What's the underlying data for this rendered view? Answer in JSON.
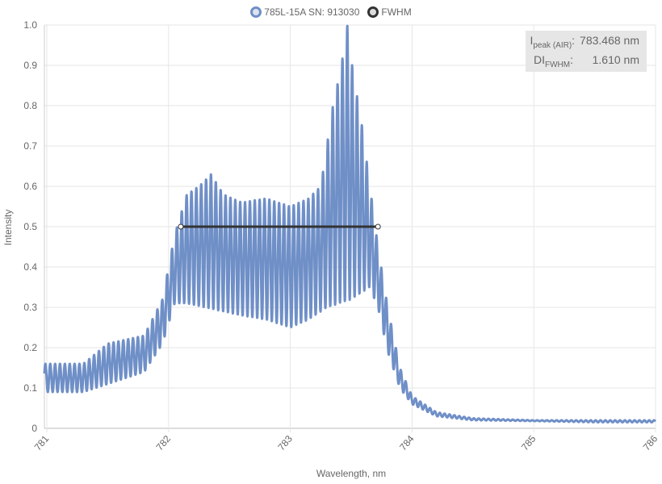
{
  "legend": {
    "series_label": "785L-15A SN: 913030",
    "fwhm_label": "FWHM"
  },
  "stats": {
    "peak_label_main": "I",
    "peak_label_sub": "peak (AIR)",
    "peak_value": "783.468 nm",
    "fwhm_label_main": "DI",
    "fwhm_label_sub": "FWHM",
    "fwhm_value": "1.610 nm"
  },
  "colors": {
    "series": "#6f8fc7",
    "fwhm": "#333333",
    "grid": "#e6e6e6",
    "axis_text": "#666666"
  },
  "chart_data": {
    "type": "line",
    "xlabel": "Wavelength, nm",
    "ylabel": "Intensity",
    "xlim": [
      780.98,
      786.0
    ],
    "ylim": [
      0,
      1.0
    ],
    "xticks": [
      "781",
      "782",
      "783",
      "784",
      "785",
      "786"
    ],
    "yticks": [
      "0",
      "0.1",
      "0.2",
      "0.3",
      "0.4",
      "0.5",
      "0.6",
      "0.7",
      "0.8",
      "0.9",
      "1.0"
    ],
    "grid": true,
    "legend_position": "top-center",
    "fwhm": {
      "x_start": 782.1,
      "x_end": 783.72,
      "y": 0.5
    },
    "peak_x": 783.468,
    "peak_y": 1.0,
    "series": [
      {
        "name": "785L-15A SN: 913030",
        "modulation_period_nm": 0.04,
        "upper_envelope": [
          [
            780.98,
            0.16
          ],
          [
            781.3,
            0.16
          ],
          [
            781.5,
            0.21
          ],
          [
            781.8,
            0.23
          ],
          [
            781.95,
            0.32
          ],
          [
            782.05,
            0.48
          ],
          [
            782.15,
            0.58
          ],
          [
            782.25,
            0.6
          ],
          [
            782.35,
            0.63
          ],
          [
            782.45,
            0.58
          ],
          [
            782.6,
            0.56
          ],
          [
            782.8,
            0.57
          ],
          [
            783.0,
            0.55
          ],
          [
            783.15,
            0.57
          ],
          [
            783.25,
            0.6
          ],
          [
            783.35,
            0.8
          ],
          [
            783.42,
            0.9
          ],
          [
            783.468,
            1.0
          ],
          [
            783.52,
            0.87
          ],
          [
            783.58,
            0.77
          ],
          [
            783.65,
            0.61
          ],
          [
            783.72,
            0.45
          ],
          [
            783.8,
            0.3
          ],
          [
            783.9,
            0.15
          ],
          [
            784.0,
            0.08
          ],
          [
            784.2,
            0.04
          ],
          [
            784.5,
            0.025
          ],
          [
            785.0,
            0.02
          ],
          [
            785.5,
            0.02
          ],
          [
            786.0,
            0.02
          ]
        ],
        "lower_envelope": [
          [
            780.98,
            0.09
          ],
          [
            781.3,
            0.09
          ],
          [
            781.5,
            0.11
          ],
          [
            781.8,
            0.14
          ],
          [
            781.95,
            0.21
          ],
          [
            782.05,
            0.31
          ],
          [
            782.15,
            0.31
          ],
          [
            782.3,
            0.3
          ],
          [
            782.6,
            0.28
          ],
          [
            782.8,
            0.27
          ],
          [
            783.0,
            0.25
          ],
          [
            783.15,
            0.27
          ],
          [
            783.3,
            0.3
          ],
          [
            783.5,
            0.32
          ],
          [
            783.65,
            0.35
          ],
          [
            783.72,
            0.3
          ],
          [
            783.8,
            0.19
          ],
          [
            783.9,
            0.1
          ],
          [
            784.0,
            0.06
          ],
          [
            784.2,
            0.03
          ],
          [
            784.5,
            0.02
          ],
          [
            785.0,
            0.018
          ],
          [
            785.5,
            0.015
          ],
          [
            786.0,
            0.015
          ]
        ]
      }
    ]
  }
}
